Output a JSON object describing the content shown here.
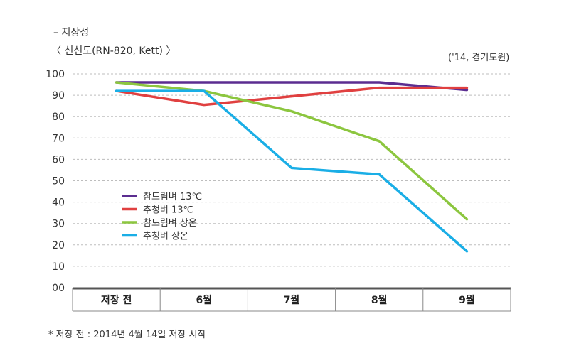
{
  "header": {
    "subtitle": "– 저장성",
    "title": "〈 신선도(RN-820, Kett) 〉",
    "source": "('14, 경기도원)"
  },
  "footnote": "* 저장 전 : 2014년 4월 14일 저장 시작",
  "chart_data": {
    "type": "line",
    "title": "신선도(RN-820, Kett)",
    "xlabel": "",
    "ylabel": "",
    "ylim": [
      0,
      100
    ],
    "y_ticks": [
      "00",
      "10",
      "20",
      "30",
      "40",
      "50",
      "60",
      "70",
      "80",
      "90",
      "100"
    ],
    "categories": [
      "저장 전",
      "6월",
      "7월",
      "8월",
      "9월"
    ],
    "grid": true,
    "legend_position": "center-left",
    "series": [
      {
        "name": "참드림벼 13℃",
        "color": "#5b2d90",
        "values": [
          96,
          96,
          96,
          96,
          92.5
        ]
      },
      {
        "name": "추청벼 13℃",
        "color": "#e04040",
        "values": [
          92,
          85.5,
          89.5,
          93.5,
          93.5
        ]
      },
      {
        "name": "참드림벼 상온",
        "color": "#8cc63f",
        "values": [
          96,
          92,
          82.5,
          68.5,
          32
        ]
      },
      {
        "name": "추청벼 상온",
        "color": "#1aaee6",
        "values": [
          92,
          92,
          56,
          53,
          17
        ]
      }
    ]
  }
}
